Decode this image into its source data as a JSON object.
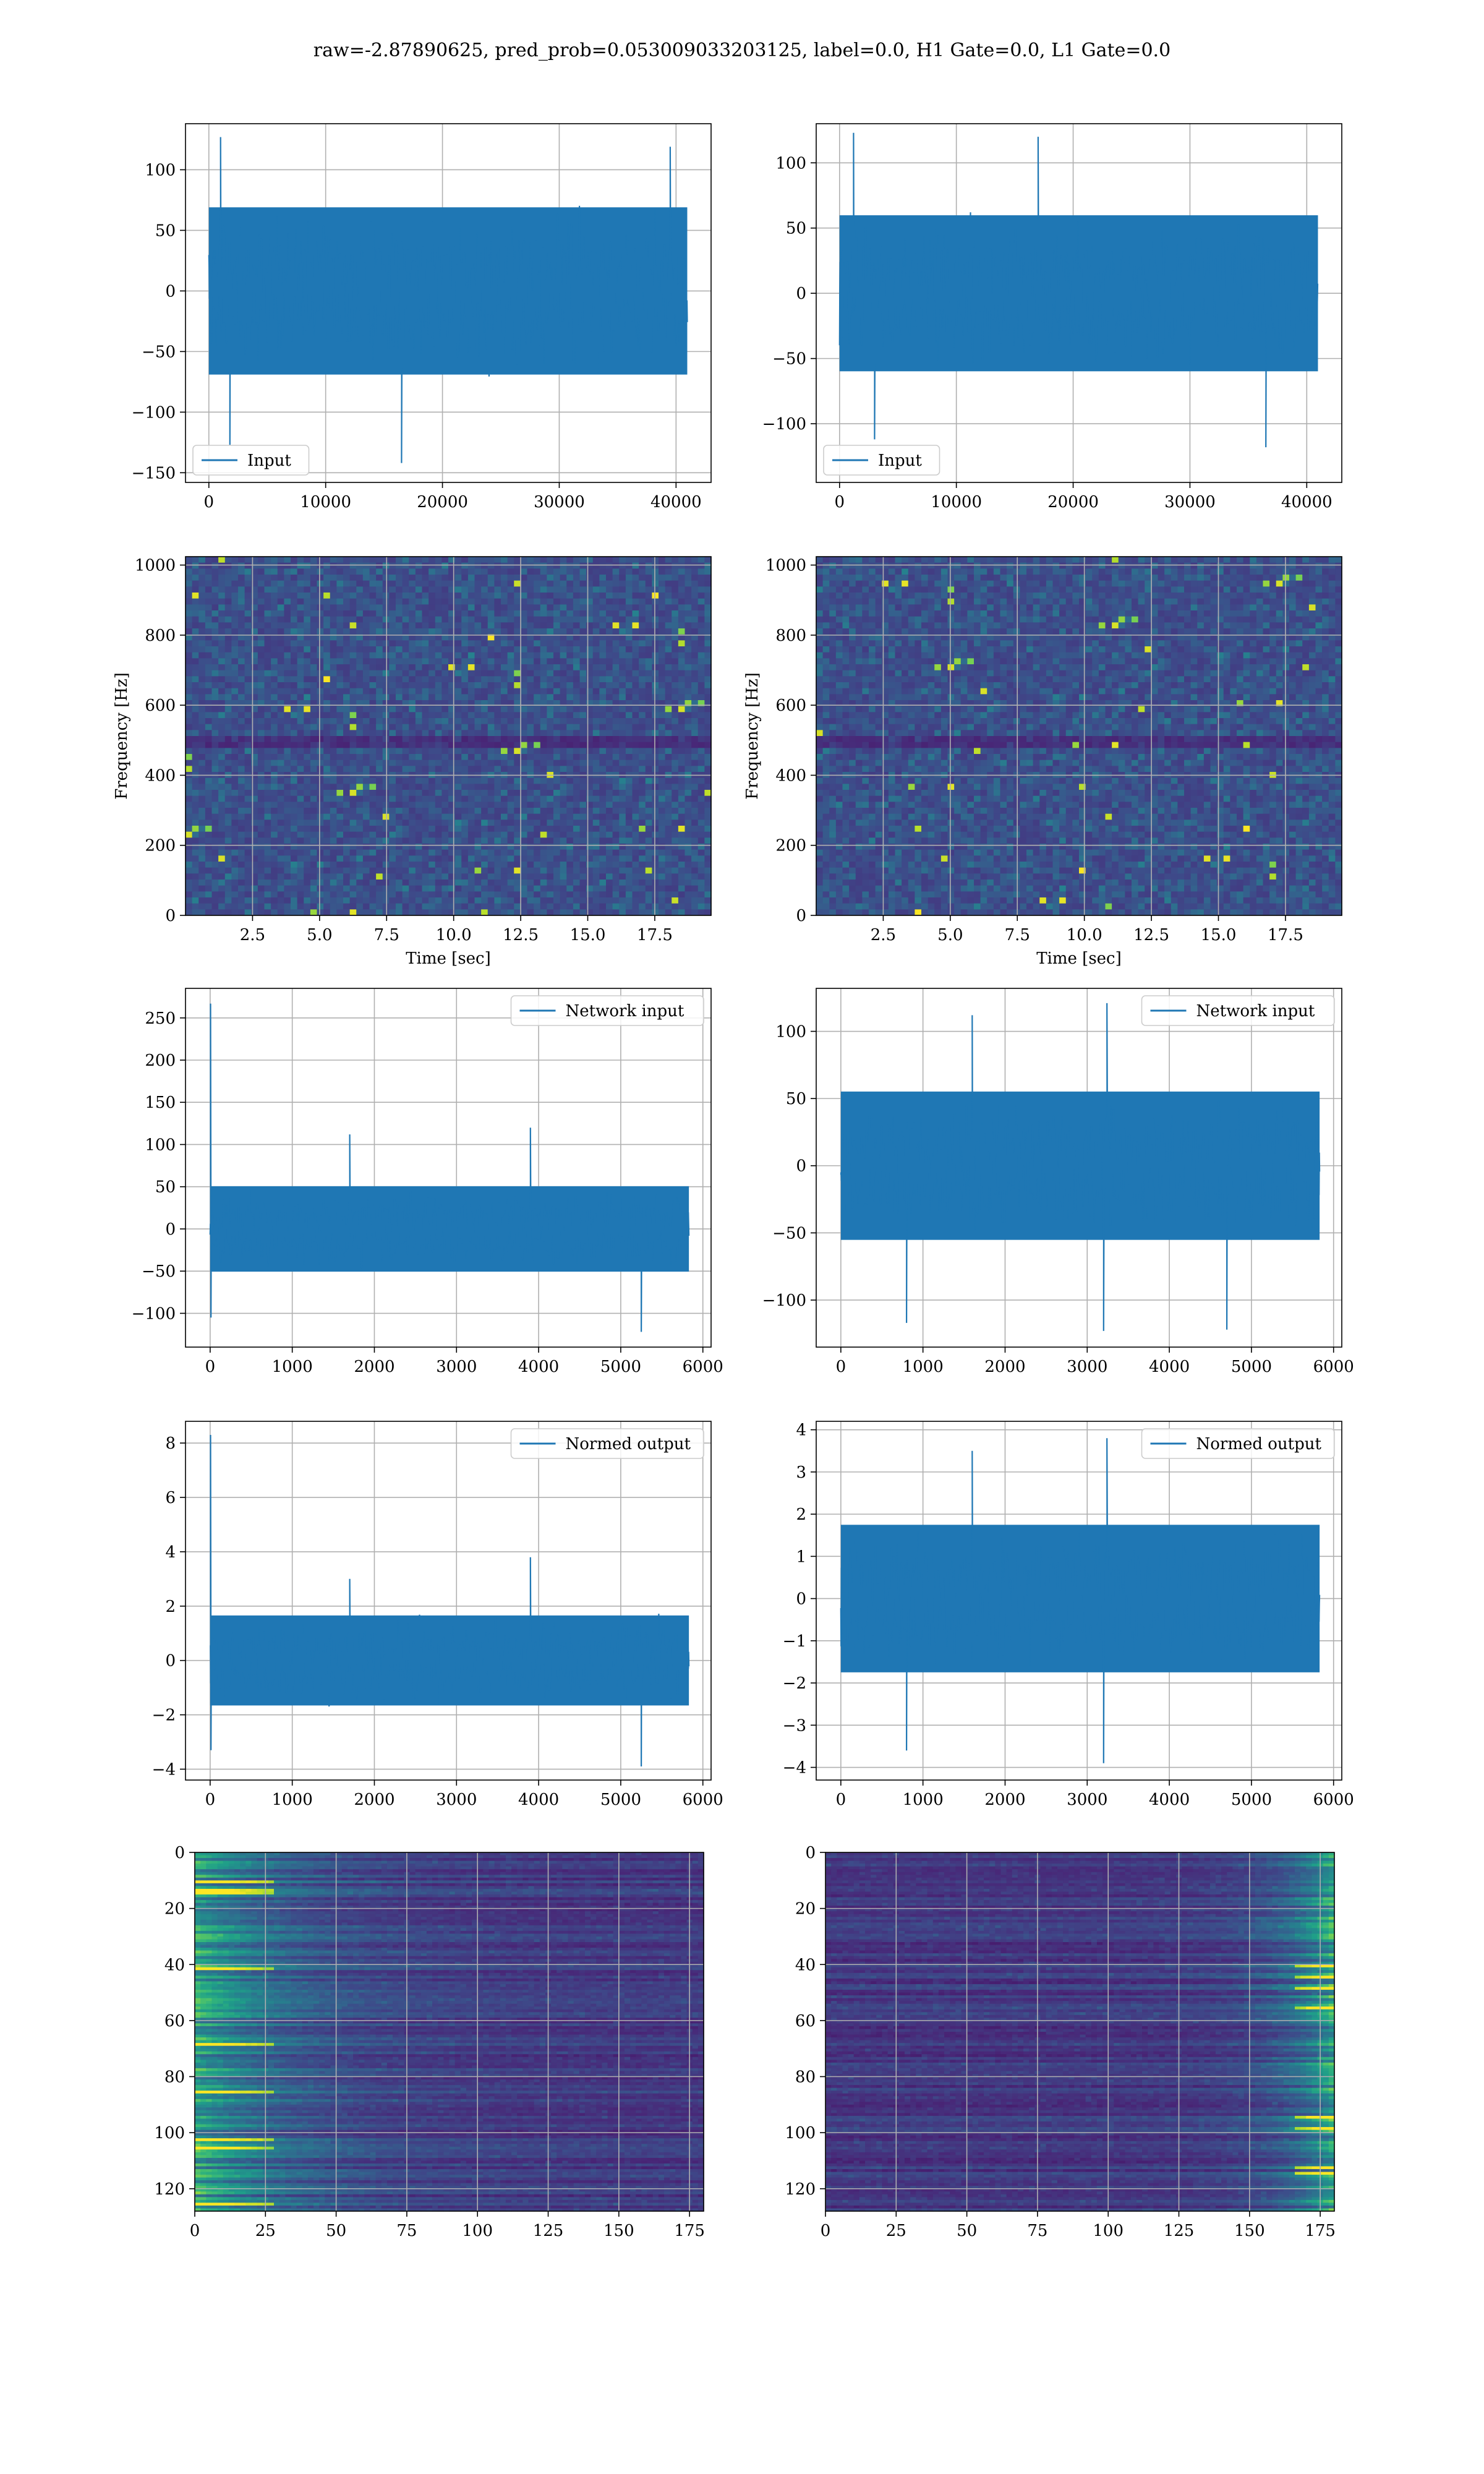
{
  "title": "raw=-2.87890625, pred_prob=0.053009033203125, label=0.0, H1 Gate=0.0, L1 Gate=0.0",
  "colors": {
    "line": "#1f77b4",
    "grid": "#b0b0b0",
    "viridis": [
      "#440154",
      "#482878",
      "#3e4989",
      "#31688e",
      "#26828e",
      "#1f9e89",
      "#35b779",
      "#6ece58",
      "#b5de2b",
      "#fde725"
    ]
  },
  "chart_data": [
    {
      "id": "input-h1",
      "type": "line",
      "xlim": [
        -2000,
        43000
      ],
      "ylim": [
        -158,
        138
      ],
      "xticks": [
        0,
        10000,
        20000,
        30000,
        40000
      ],
      "yticks": [
        -150,
        -100,
        -50,
        0,
        50,
        100
      ],
      "xtick_labels": [
        "0",
        "10000",
        "20000",
        "30000",
        "40000"
      ],
      "ytick_labels": [
        "−150",
        "−100",
        "−50",
        "0",
        "50",
        "100"
      ],
      "legend": {
        "label": "Input",
        "position": "lower-left"
      },
      "series": [
        {
          "name": "Input",
          "x_range": [
            0,
            40960
          ],
          "envelope": [
            -75,
            75
          ],
          "peaks": [
            [
              1000,
              127
            ],
            [
              16500,
              -142
            ],
            [
              1800,
              -127
            ],
            [
              39500,
              119
            ]
          ]
        }
      ],
      "grid": true,
      "xlabel": "",
      "ylabel": ""
    },
    {
      "id": "input-l1",
      "type": "line",
      "xlim": [
        -2000,
        43000
      ],
      "ylim": [
        -145,
        130
      ],
      "xticks": [
        0,
        10000,
        20000,
        30000,
        40000
      ],
      "yticks": [
        -100,
        -50,
        0,
        50,
        100
      ],
      "xtick_labels": [
        "0",
        "10000",
        "20000",
        "30000",
        "40000"
      ],
      "ytick_labels": [
        "−100",
        "−50",
        "0",
        "50",
        "100"
      ],
      "legend": {
        "label": "Input",
        "position": "lower-left"
      },
      "series": [
        {
          "name": "Input",
          "x_range": [
            0,
            40960
          ],
          "envelope": [
            -65,
            65
          ],
          "peaks": [
            [
              1200,
              123
            ],
            [
              3000,
              -112
            ],
            [
              17000,
              120
            ],
            [
              36500,
              -118
            ]
          ]
        }
      ],
      "grid": true,
      "xlabel": "",
      "ylabel": ""
    },
    {
      "id": "spectrogram-h1",
      "type": "heatmap",
      "xlim": [
        0,
        19.6
      ],
      "ylim": [
        0,
        1024
      ],
      "xticks": [
        2.5,
        5.0,
        7.5,
        10.0,
        12.5,
        15.0,
        17.5
      ],
      "yticks": [
        0,
        200,
        400,
        600,
        800,
        1000
      ],
      "xtick_labels": [
        "2.5",
        "5.0",
        "7.5",
        "10.0",
        "12.5",
        "15.0",
        "17.5"
      ],
      "ytick_labels": [
        "0",
        "200",
        "400",
        "600",
        "800",
        "1000"
      ],
      "xlabel": "Time [sec]",
      "ylabel": "Frequency [Hz]",
      "grid": true
    },
    {
      "id": "spectrogram-l1",
      "type": "heatmap",
      "xlim": [
        0,
        19.6
      ],
      "ylim": [
        0,
        1024
      ],
      "xticks": [
        2.5,
        5.0,
        7.5,
        10.0,
        12.5,
        15.0,
        17.5
      ],
      "yticks": [
        0,
        200,
        400,
        600,
        800,
        1000
      ],
      "xtick_labels": [
        "2.5",
        "5.0",
        "7.5",
        "10.0",
        "12.5",
        "15.0",
        "17.5"
      ],
      "ytick_labels": [
        "0",
        "200",
        "400",
        "600",
        "800",
        "1000"
      ],
      "xlabel": "Time [sec]",
      "ylabel": "Frequency [Hz]",
      "grid": true
    },
    {
      "id": "network-input-h1",
      "type": "line",
      "xlim": [
        -300,
        6100
      ],
      "ylim": [
        -140,
        285
      ],
      "xticks": [
        0,
        1000,
        2000,
        3000,
        4000,
        5000,
        6000
      ],
      "yticks": [
        -100,
        -50,
        0,
        50,
        100,
        150,
        200,
        250
      ],
      "xtick_labels": [
        "0",
        "1000",
        "2000",
        "3000",
        "4000",
        "5000",
        "6000"
      ],
      "ytick_labels": [
        "−100",
        "−50",
        "0",
        "50",
        "100",
        "150",
        "200",
        "250"
      ],
      "legend": {
        "label": "Network input",
        "position": "top-right"
      },
      "series": [
        {
          "name": "Network input",
          "x_range": [
            0,
            5830
          ],
          "envelope": [
            -55,
            55
          ],
          "peaks": [
            [
              5,
              267
            ],
            [
              10,
              -105
            ],
            [
              3900,
              120
            ],
            [
              5250,
              -122
            ],
            [
              1700,
              112
            ]
          ]
        }
      ],
      "grid": true,
      "xlabel": "",
      "ylabel": ""
    },
    {
      "id": "network-input-l1",
      "type": "line",
      "xlim": [
        -300,
        6100
      ],
      "ylim": [
        -135,
        132
      ],
      "xticks": [
        0,
        1000,
        2000,
        3000,
        4000,
        5000,
        6000
      ],
      "yticks": [
        -100,
        -50,
        0,
        50,
        100
      ],
      "xtick_labels": [
        "0",
        "1000",
        "2000",
        "3000",
        "4000",
        "5000",
        "6000"
      ],
      "ytick_labels": [
        "−100",
        "−50",
        "0",
        "50",
        "100"
      ],
      "legend": {
        "label": "Network input",
        "position": "top-right"
      },
      "series": [
        {
          "name": "Network input",
          "x_range": [
            0,
            5830
          ],
          "envelope": [
            -60,
            60
          ],
          "peaks": [
            [
              3240,
              121
            ],
            [
              3200,
              -123
            ],
            [
              800,
              -117
            ],
            [
              4700,
              -122
            ],
            [
              1600,
              112
            ]
          ]
        }
      ],
      "grid": true,
      "xlabel": "",
      "ylabel": ""
    },
    {
      "id": "normed-output-h1",
      "type": "line",
      "xlim": [
        -300,
        6100
      ],
      "ylim": [
        -4.4,
        8.8
      ],
      "xticks": [
        0,
        1000,
        2000,
        3000,
        4000,
        5000,
        6000
      ],
      "yticks": [
        -4,
        -2,
        0,
        2,
        4,
        6,
        8
      ],
      "xtick_labels": [
        "0",
        "1000",
        "2000",
        "3000",
        "4000",
        "5000",
        "6000"
      ],
      "ytick_labels": [
        "−4",
        "−2",
        "0",
        "2",
        "4",
        "6",
        "8"
      ],
      "legend": {
        "label": "Normed output",
        "position": "top-right"
      },
      "series": [
        {
          "name": "Normed output",
          "x_range": [
            0,
            5830
          ],
          "envelope": [
            -1.8,
            1.8
          ],
          "peaks": [
            [
              5,
              8.3
            ],
            [
              10,
              -3.3
            ],
            [
              3900,
              3.8
            ],
            [
              5250,
              -3.9
            ],
            [
              1700,
              3.0
            ]
          ]
        }
      ],
      "grid": true,
      "xlabel": "",
      "ylabel": ""
    },
    {
      "id": "normed-output-l1",
      "type": "line",
      "xlim": [
        -300,
        6100
      ],
      "ylim": [
        -4.3,
        4.2
      ],
      "xticks": [
        0,
        1000,
        2000,
        3000,
        4000,
        5000,
        6000
      ],
      "yticks": [
        -4,
        -3,
        -2,
        -1,
        0,
        1,
        2,
        3,
        4
      ],
      "xtick_labels": [
        "0",
        "1000",
        "2000",
        "3000",
        "4000",
        "5000",
        "6000"
      ],
      "ytick_labels": [
        "−4",
        "−3",
        "−2",
        "−1",
        "0",
        "1",
        "2",
        "3",
        "4"
      ],
      "legend": {
        "label": "Normed output",
        "position": "top-right"
      },
      "series": [
        {
          "name": "Normed output",
          "x_range": [
            0,
            5830
          ],
          "envelope": [
            -1.9,
            1.9
          ],
          "peaks": [
            [
              3240,
              3.8
            ],
            [
              3200,
              -3.9
            ],
            [
              800,
              -3.6
            ],
            [
              1600,
              3.5
            ]
          ]
        }
      ],
      "grid": true,
      "xlabel": "",
      "ylabel": ""
    },
    {
      "id": "feature-map-h1",
      "type": "heatmap",
      "xlim": [
        0,
        180
      ],
      "ylim": [
        128,
        0
      ],
      "xticks": [
        0,
        25,
        50,
        75,
        100,
        125,
        150,
        175
      ],
      "yticks": [
        0,
        20,
        40,
        60,
        80,
        100,
        120
      ],
      "xtick_labels": [
        "0",
        "25",
        "50",
        "75",
        "100",
        "125",
        "150",
        "175"
      ],
      "ytick_labels": [
        "0",
        "20",
        "40",
        "60",
        "80",
        "100",
        "120"
      ],
      "hot_region": "left",
      "grid": true,
      "xlabel": "",
      "ylabel": ""
    },
    {
      "id": "feature-map-l1",
      "type": "heatmap",
      "xlim": [
        0,
        180
      ],
      "ylim": [
        128,
        0
      ],
      "xticks": [
        0,
        25,
        50,
        75,
        100,
        125,
        150,
        175
      ],
      "yticks": [
        0,
        20,
        40,
        60,
        80,
        100,
        120
      ],
      "xtick_labels": [
        "0",
        "25",
        "50",
        "75",
        "100",
        "125",
        "150",
        "175"
      ],
      "ytick_labels": [
        "0",
        "20",
        "40",
        "60",
        "80",
        "100",
        "120"
      ],
      "hot_region": "right",
      "grid": true,
      "xlabel": "",
      "ylabel": ""
    }
  ]
}
